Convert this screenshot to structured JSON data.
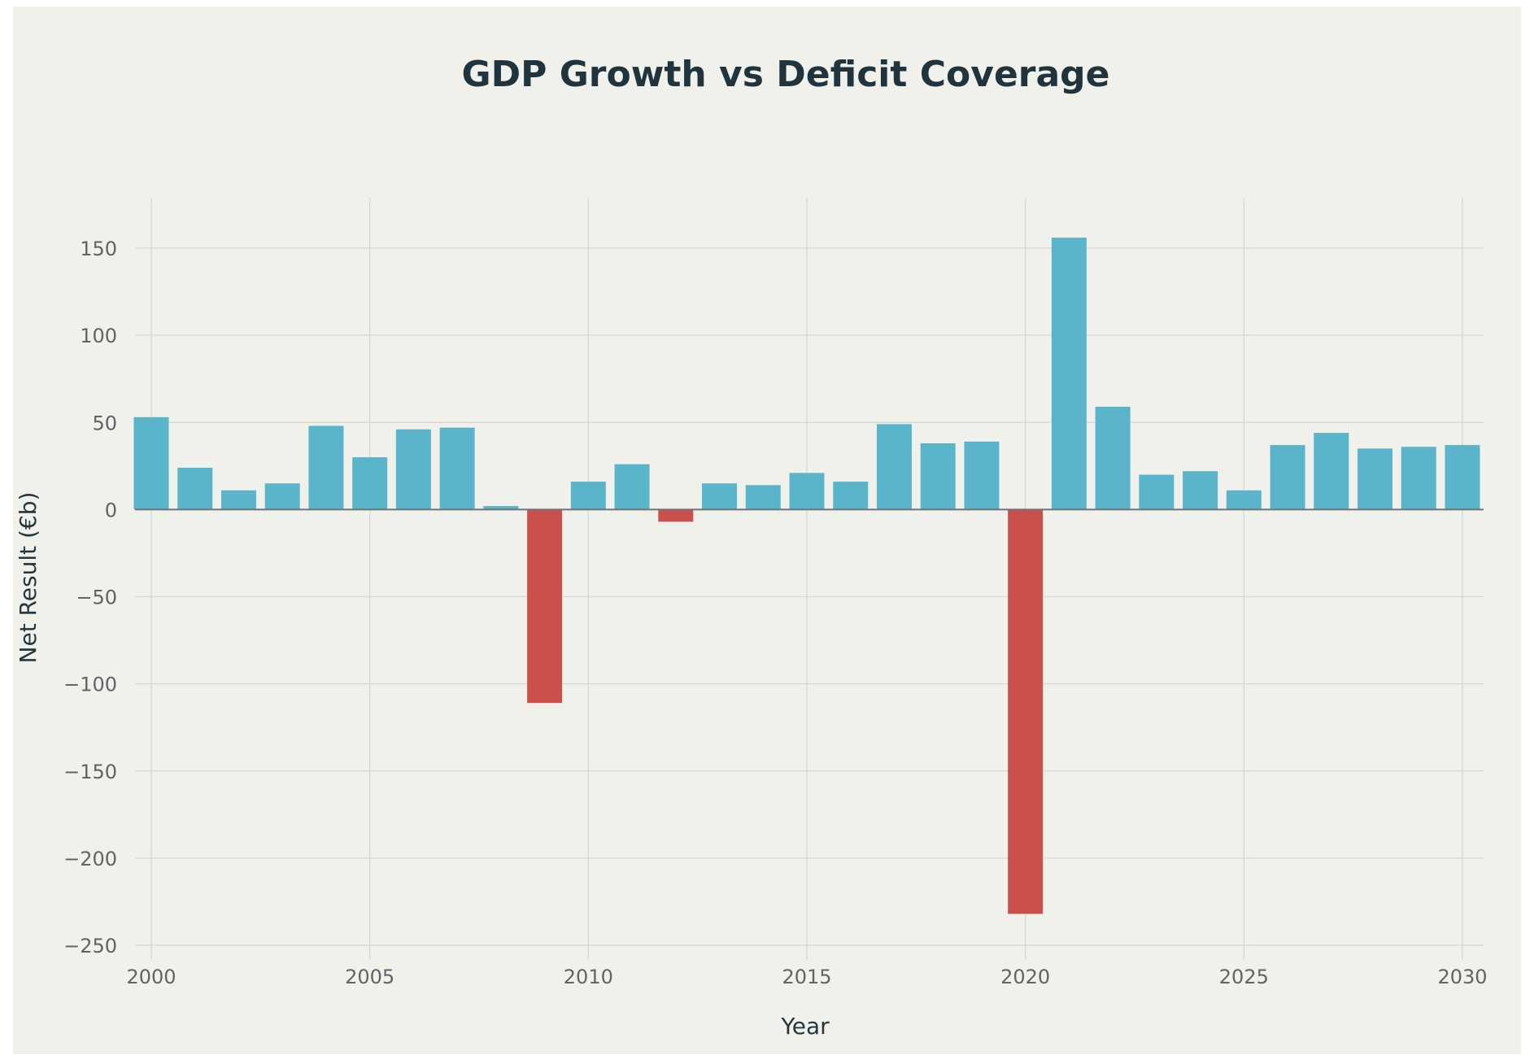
{
  "chart_data": {
    "type": "bar",
    "title": "GDP Growth vs Deficit Coverage",
    "xlabel": "Year",
    "ylabel": "Net Result (€b)",
    "x": [
      2000,
      2001,
      2002,
      2003,
      2004,
      2005,
      2006,
      2007,
      2008,
      2009,
      2010,
      2011,
      2012,
      2013,
      2014,
      2015,
      2016,
      2017,
      2018,
      2019,
      2020,
      2021,
      2022,
      2023,
      2024,
      2025,
      2026,
      2027,
      2028,
      2029,
      2030
    ],
    "values": [
      53,
      24,
      11,
      15,
      48,
      30,
      46,
      47,
      2,
      -111,
      16,
      26,
      -7,
      15,
      14,
      21,
      16,
      49,
      38,
      39,
      -232,
      156,
      59,
      20,
      22,
      11,
      37,
      44,
      35,
      36,
      37
    ],
    "xlim": [
      2000,
      2030
    ],
    "ylim": [
      -250,
      150
    ],
    "x_ticks": [
      2000,
      2005,
      2010,
      2015,
      2020,
      2025,
      2030
    ],
    "x_tick_labels": [
      "2000",
      "2005",
      "2010",
      "2015",
      "2020",
      "2025",
      "2030"
    ],
    "y_ticks": [
      150,
      100,
      50,
      0,
      -50,
      -100,
      -150,
      -200,
      -250
    ],
    "y_tick_labels": [
      "150",
      "100",
      "50",
      "0",
      "−50",
      "−100",
      "−150",
      "−200",
      "−250"
    ],
    "grid": true,
    "colors": {
      "positive": "#5ab5ca",
      "negative": "#cb504c",
      "background": "#f1f1ec",
      "gridline": "#d6d7d2",
      "zeroline": "#6e7478"
    }
  }
}
